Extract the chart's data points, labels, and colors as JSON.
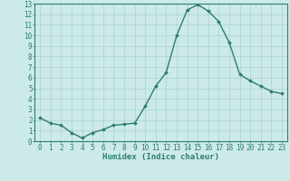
{
  "x": [
    0,
    1,
    2,
    3,
    4,
    5,
    6,
    7,
    8,
    9,
    10,
    11,
    12,
    13,
    14,
    15,
    16,
    17,
    18,
    19,
    20,
    21,
    22,
    23
  ],
  "y": [
    2.2,
    1.7,
    1.5,
    0.8,
    0.3,
    0.8,
    1.1,
    1.5,
    1.6,
    1.7,
    3.3,
    5.2,
    6.5,
    10.0,
    12.4,
    12.9,
    12.3,
    11.3,
    9.3,
    6.3,
    5.7,
    5.2,
    4.7,
    4.5
  ],
  "line_color": "#2d7d6e",
  "marker": "D",
  "marker_size": 2,
  "linewidth": 1.0,
  "xlabel": "Humidex (Indice chaleur)",
  "xlim": [
    -0.5,
    23.5
  ],
  "ylim": [
    0,
    13
  ],
  "yticks": [
    0,
    1,
    2,
    3,
    4,
    5,
    6,
    7,
    8,
    9,
    10,
    11,
    12,
    13
  ],
  "xticks": [
    0,
    1,
    2,
    3,
    4,
    5,
    6,
    7,
    8,
    9,
    10,
    11,
    12,
    13,
    14,
    15,
    16,
    17,
    18,
    19,
    20,
    21,
    22,
    23
  ],
  "background_color": "#cceae7",
  "grid_color": "#aad4d0",
  "line_label_color": "#2d7d6e",
  "xlabel_fontsize": 6.5,
  "tick_fontsize": 5.5
}
